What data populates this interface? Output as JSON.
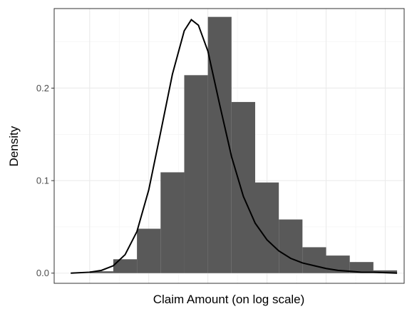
{
  "chart_data": {
    "type": "bar",
    "subtype": "histogram-with-density-curve",
    "title": "",
    "xlabel": "Claim Amount (on log scale)",
    "ylabel": "Density",
    "x_tick_labels": [],
    "y_ticks": [
      0.0,
      0.1,
      0.2
    ],
    "y_tick_labels": [
      "0.0",
      "0.1",
      "0.2"
    ],
    "ylim": [
      -0.011,
      0.286
    ],
    "xlim": [
      0.5,
      15.3
    ],
    "grid": true,
    "legend": "none",
    "bars": {
      "bin_width": 1.0,
      "bin_edges": [
        2,
        3,
        4,
        5,
        6,
        7,
        8,
        9,
        10,
        11,
        12,
        13,
        14
      ],
      "densities": [
        0.002,
        0.015,
        0.048,
        0.109,
        0.214,
        0.277,
        0.185,
        0.098,
        0.058,
        0.028,
        0.019,
        0.012,
        0.003
      ]
    },
    "curve": {
      "x": [
        1.2,
        2.0,
        2.5,
        3.0,
        3.5,
        4.0,
        4.5,
        5.0,
        5.5,
        6.0,
        6.3,
        6.6,
        7.0,
        7.5,
        8.0,
        8.5,
        9.0,
        9.5,
        10.0,
        10.5,
        11.0,
        11.5,
        12.0,
        12.5,
        13.0,
        13.5,
        14.0,
        15.0
      ],
      "y": [
        0.0,
        0.001,
        0.003,
        0.008,
        0.02,
        0.045,
        0.09,
        0.152,
        0.215,
        0.262,
        0.274,
        0.268,
        0.24,
        0.182,
        0.126,
        0.083,
        0.054,
        0.036,
        0.024,
        0.016,
        0.011,
        0.008,
        0.005,
        0.003,
        0.002,
        0.001,
        0.001,
        0.0
      ]
    },
    "colors": {
      "bar": "#595959",
      "curve": "#000000",
      "grid_major": "#ebebeb",
      "grid_minor": "#f2f2f2",
      "panel_border": "#333333"
    }
  }
}
